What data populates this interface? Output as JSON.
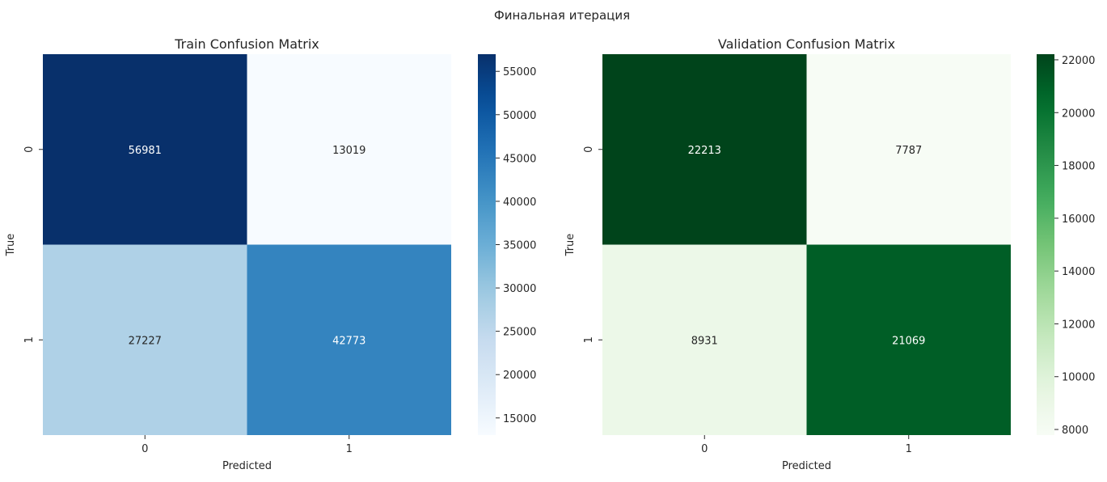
{
  "figure": {
    "suptitle": "Финальная итерация"
  },
  "chart_data": [
    {
      "type": "heatmap",
      "title": "Train Confusion Matrix",
      "xlabel": "Predicted",
      "ylabel": "True",
      "x_categories": [
        "0",
        "1"
      ],
      "y_categories": [
        "0",
        "1"
      ],
      "values": [
        [
          56981,
          13019
        ],
        [
          27227,
          42773
        ]
      ],
      "colormap": "Blues",
      "colorbar": {
        "range": [
          13019,
          56981
        ],
        "ticks": [
          15000,
          20000,
          25000,
          30000,
          35000,
          40000,
          45000,
          50000,
          55000
        ],
        "tick_labels": [
          "15000",
          "20000",
          "25000",
          "30000",
          "35000",
          "40000",
          "45000",
          "50000",
          "55000"
        ]
      },
      "cell_labels": [
        "56981",
        "13019",
        "27227",
        "42773"
      ],
      "grid": false,
      "legend": "colorbar-right"
    },
    {
      "type": "heatmap",
      "title": "Validation Confusion Matrix",
      "xlabel": "Predicted",
      "ylabel": "True",
      "x_categories": [
        "0",
        "1"
      ],
      "y_categories": [
        "0",
        "1"
      ],
      "values": [
        [
          22213,
          7787
        ],
        [
          8931,
          21069
        ]
      ],
      "colormap": "Greens",
      "colorbar": {
        "range": [
          7787,
          22213
        ],
        "ticks": [
          8000,
          10000,
          12000,
          14000,
          16000,
          18000,
          20000,
          22000
        ],
        "tick_labels": [
          "8000",
          "10000",
          "12000",
          "14000",
          "16000",
          "18000",
          "20000",
          "22000"
        ]
      },
      "cell_labels": [
        "22213",
        "7787",
        "8931",
        "21069"
      ],
      "grid": false,
      "legend": "colorbar-right"
    }
  ]
}
